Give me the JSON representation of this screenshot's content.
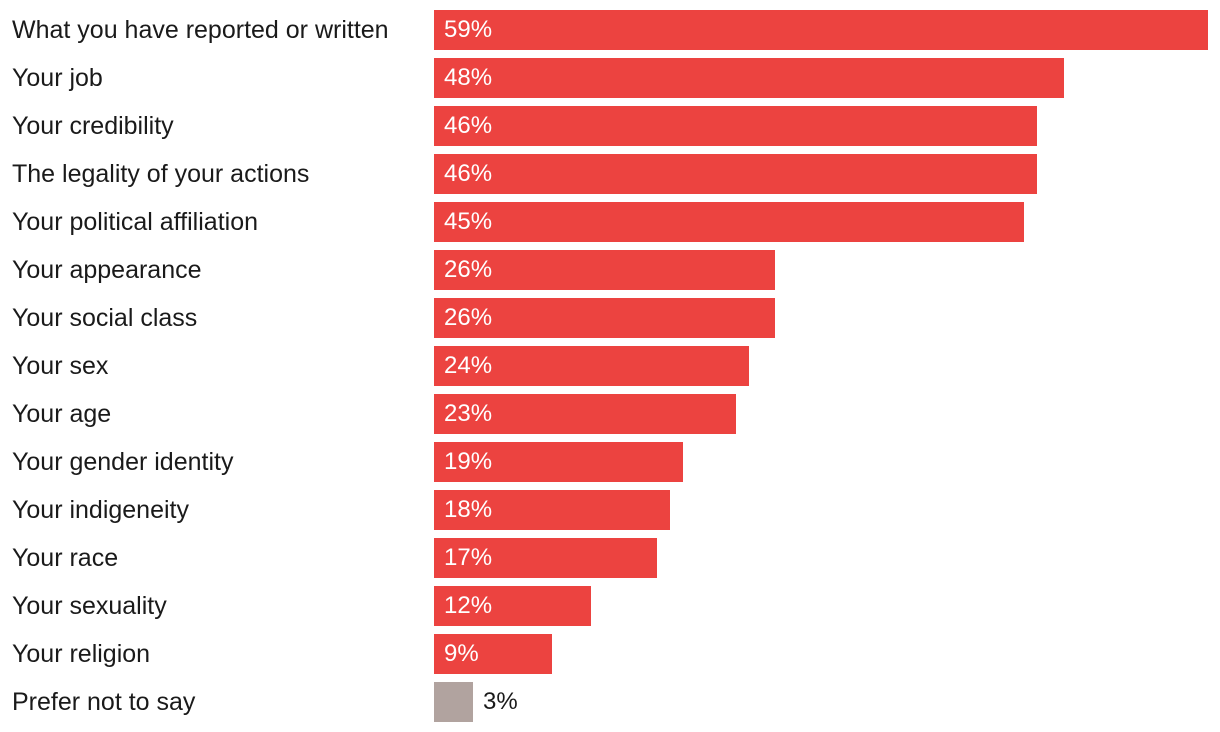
{
  "chart_data": {
    "type": "bar",
    "orientation": "horizontal",
    "categories": [
      "What you have reported or written",
      "Your job",
      "Your credibility",
      "The legality of your actions",
      "Your political affiliation",
      "Your appearance",
      "Your social class",
      "Your sex",
      "Your age",
      "Your gender identity",
      "Your indigeneity",
      "Your race",
      "Your sexuality",
      "Your religion",
      "Prefer not to say"
    ],
    "values": [
      59,
      48,
      46,
      46,
      45,
      26,
      26,
      24,
      23,
      19,
      18,
      17,
      12,
      9,
      3
    ],
    "value_labels": [
      "59%",
      "48%",
      "46%",
      "46%",
      "45%",
      "26%",
      "26%",
      "24%",
      "23%",
      "19%",
      "18%",
      "17%",
      "12%",
      "9%",
      "3%"
    ],
    "xlim": [
      0,
      59
    ],
    "grid": false,
    "colors": {
      "bar": "#ec4340",
      "muted_bar": "#b1a39f"
    },
    "muted_categories": [
      "Prefer not to say"
    ]
  }
}
